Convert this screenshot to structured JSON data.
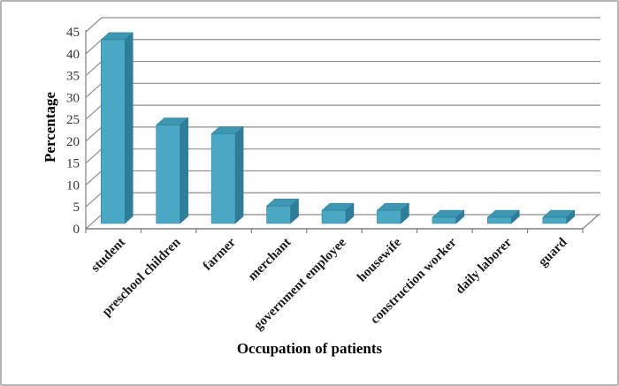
{
  "figure": {
    "background": "#ffffff",
    "border_color": "#b5b5b5"
  },
  "chart_data": {
    "type": "bar",
    "style": "3d-column",
    "xlabel": "Occupation of patients",
    "ylabel": "Percentage",
    "categories": [
      "student",
      "preschool children",
      "farmer",
      "merchant",
      "government employee",
      "housewife",
      "construction worker",
      "daily laborer",
      "guard"
    ],
    "values": [
      42,
      22.5,
      20.5,
      4,
      3,
      3,
      1.4,
      1.4,
      1.4
    ],
    "ylim": [
      0,
      45
    ],
    "yticks": [
      0,
      5,
      10,
      15,
      20,
      25,
      30,
      35,
      40,
      45
    ],
    "grid": "horizontal-backwall",
    "legend": "none",
    "colors": {
      "bar_front": "#4BA8C4",
      "bar_top": "#3D97B3",
      "bar_side": "#2E7D99",
      "bar_edge": "#2B7490",
      "gridline": "#8E8E8E",
      "axis": "#7F7F7F",
      "tick_label": "#333333",
      "category_label": "#1A1A1A",
      "axis_title": "#000000"
    }
  }
}
